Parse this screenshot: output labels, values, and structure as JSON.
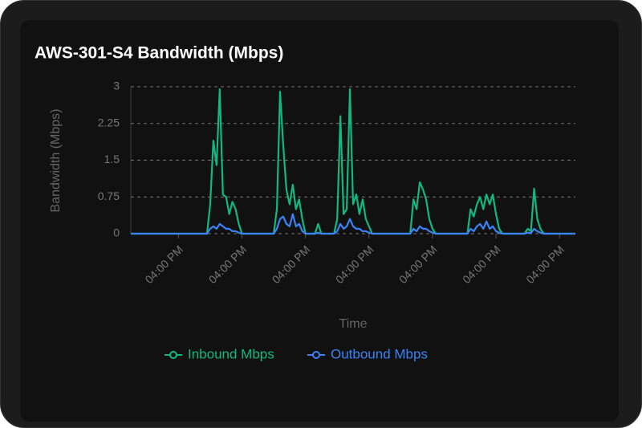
{
  "chart_data": {
    "type": "line",
    "title": "AWS-301-S4 Bandwidth (Mbps)",
    "ylabel": "Bandwidth (Mbps)",
    "xlabel": "Time",
    "categories": [
      null,
      null,
      null,
      null,
      null,
      null,
      null,
      null,
      null,
      null,
      null,
      null,
      null,
      null,
      null,
      "04:00 PM",
      null,
      null,
      null,
      null,
      null,
      null,
      null,
      null,
      null,
      null,
      null,
      null,
      null,
      null,
      null,
      null,
      null,
      null,
      null,
      "04:00 PM",
      null,
      null,
      null,
      null,
      null,
      null,
      null,
      null,
      null,
      null,
      null,
      null,
      null,
      null,
      null,
      null,
      null,
      null,
      null,
      "04:00 PM",
      null,
      null,
      null,
      null,
      null,
      null,
      null,
      null,
      null,
      null,
      null,
      null,
      null,
      null,
      null,
      null,
      null,
      null,
      null,
      "04:00 PM",
      null,
      null,
      null,
      null,
      null,
      null,
      null,
      null,
      null,
      null,
      null,
      null,
      null,
      null,
      null,
      null,
      null,
      null,
      null,
      "04:00 PM",
      null,
      null,
      null,
      null,
      null,
      null,
      null,
      null,
      null,
      null,
      null,
      null,
      null,
      null,
      null,
      null,
      null,
      null,
      null,
      "04:00 PM",
      null,
      null,
      null,
      null,
      null,
      null,
      null,
      null,
      null,
      null,
      null,
      null,
      null,
      null,
      null,
      null,
      null,
      null,
      null,
      "04:00 PM",
      null,
      null,
      null,
      null,
      null
    ],
    "series": [
      {
        "name": "Inbound Mbps",
        "color": "#10b981",
        "values": [
          0,
          0,
          0,
          0,
          0,
          0,
          0,
          0,
          0,
          0,
          0,
          0,
          0,
          0,
          0,
          0,
          0,
          0,
          0,
          0,
          0,
          0,
          0,
          0,
          0,
          0.6,
          1.9,
          1.4,
          2.95,
          0.8,
          0.75,
          0.4,
          0.65,
          0.5,
          0.2,
          0,
          0,
          0,
          0,
          0,
          0,
          0,
          0,
          0,
          0,
          0,
          0.5,
          2.9,
          1.8,
          0.9,
          0.6,
          1.0,
          0.5,
          0.7,
          0.3,
          0,
          0,
          0,
          0,
          0.2,
          0,
          0,
          0,
          0,
          0,
          0.3,
          2.4,
          0.4,
          0.5,
          2.95,
          0.6,
          0.8,
          0.4,
          0.7,
          0.3,
          0.15,
          0,
          0,
          0,
          0,
          0,
          0,
          0,
          0,
          0,
          0,
          0,
          0,
          0,
          0.7,
          0.5,
          1.05,
          0.9,
          0.7,
          0.3,
          0.1,
          0,
          0,
          0,
          0,
          0,
          0,
          0,
          0,
          0,
          0,
          0,
          0.5,
          0.35,
          0.6,
          0.75,
          0.5,
          0.8,
          0.6,
          0.8,
          0.4,
          0.1,
          0,
          0,
          0,
          0,
          0,
          0,
          0,
          0,
          0.1,
          0.05,
          0.92,
          0.3,
          0.1,
          0,
          0,
          0,
          0,
          0,
          0,
          0,
          0,
          0,
          0,
          0
        ]
      },
      {
        "name": "Outbound Mbps",
        "color": "#3b82f6",
        "values": [
          0,
          0,
          0,
          0,
          0,
          0,
          0,
          0,
          0,
          0,
          0,
          0,
          0,
          0,
          0,
          0,
          0,
          0,
          0,
          0,
          0,
          0,
          0,
          0,
          0,
          0.1,
          0.15,
          0.1,
          0.2,
          0.15,
          0.1,
          0.1,
          0.05,
          0.05,
          0.02,
          0,
          0,
          0,
          0,
          0,
          0,
          0,
          0,
          0,
          0,
          0,
          0.1,
          0.3,
          0.35,
          0.2,
          0.15,
          0.4,
          0.15,
          0.2,
          0.05,
          0,
          0,
          0,
          0,
          0.02,
          0,
          0,
          0,
          0,
          0,
          0.05,
          0.2,
          0.1,
          0.15,
          0.3,
          0.15,
          0.1,
          0.1,
          0.05,
          0.05,
          0.02,
          0,
          0,
          0,
          0,
          0,
          0,
          0,
          0,
          0,
          0,
          0,
          0,
          0,
          0.1,
          0.05,
          0.15,
          0.1,
          0.1,
          0.05,
          0.02,
          0,
          0,
          0,
          0,
          0,
          0,
          0,
          0,
          0,
          0,
          0,
          0.1,
          0.05,
          0.15,
          0.2,
          0.1,
          0.25,
          0.1,
          0.15,
          0.05,
          0.02,
          0,
          0,
          0,
          0,
          0,
          0,
          0,
          0,
          0.02,
          0.01,
          0.1,
          0.05,
          0.02,
          0,
          0,
          0,
          0,
          0,
          0,
          0,
          0,
          0,
          0,
          0
        ]
      }
    ],
    "ylim": [
      0,
      3
    ],
    "yticks": [
      0,
      0.75,
      1.5,
      2.25,
      3
    ],
    "grid": true,
    "legend": "bottom"
  }
}
